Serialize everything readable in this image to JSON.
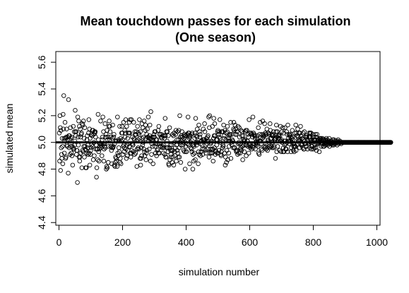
{
  "chart_data": {
    "type": "scatter",
    "title": "Mean touchdown passes for each simulation",
    "subtitle": "(One season)",
    "xlabel": "simulation number",
    "ylabel": "simulated mean",
    "xlim": [
      -10,
      1010
    ],
    "ylim": [
      4.38,
      5.68
    ],
    "x_ticks": [
      0,
      200,
      400,
      600,
      800,
      1000
    ],
    "x_tick_labels": [
      "0",
      "200",
      "400",
      "600",
      "800",
      "1000"
    ],
    "y_ticks": [
      4.4,
      4.6,
      4.8,
      5.0,
      5.2,
      5.4,
      5.6
    ],
    "y_tick_labels": [
      "4.4",
      "4.6",
      "4.8",
      "5.0",
      "5.2",
      "5.4",
      "5.6"
    ],
    "reference_line": {
      "y": 5.0,
      "color": "#000000"
    },
    "marker": {
      "shape": "open-circle",
      "color": "#000000"
    },
    "grid": false,
    "n_points": 1000,
    "x": "simulation index 1..1000",
    "values": [
      5.07,
      4.86,
      5.2,
      5.11,
      4.79,
      5.09,
      4.96,
      4.91,
      4.88,
      5.03,
      4.97,
      4.84,
      5.21,
      5.1,
      5.35,
      5.03,
      4.92,
      5.01,
      5.15,
      5.03,
      4.88,
      4.89,
      5.04,
      5.1,
      4.98,
      4.97,
      5.04,
      5.02,
      4.77,
      5.32,
      5.05,
      4.96,
      5.05,
      5.02,
      4.91,
      5.11,
      4.97,
      5.03,
      4.92,
      5.04,
      4.9,
      4.97,
      4.83,
      4.96,
      5.12,
      4.95,
      4.95,
      5.08,
      4.98,
      5.01,
      5.24,
      5.08,
      5.05,
      5.08,
      4.91,
      4.94,
      4.94,
      4.7,
      5.19,
      5.04,
      4.98,
      5.16,
      4.89,
      5.12,
      4.86,
      4.89,
      5.1,
      5.04,
      4.92,
      5.06,
      5.07,
      4.81,
      5.14,
      4.94,
      5.13,
      4.93,
      5.16,
      4.97,
      5.03,
      4.89,
      5.11,
      4.97,
      4.95,
      4.81,
      4.94,
      4.81,
      4.92,
      5.02,
      5.05,
      4.96,
      4.98,
      4.91,
      5.07,
      5.17,
      4.92,
      5.1,
      4.83,
      5.03,
      4.91,
      4.94,
      4.96,
      5.06,
      4.98,
      5.05,
      5.09,
      4.97,
      5.09,
      4.87,
      5.06,
      5.0,
      4.9,
      5.08,
      5.07,
      5.08,
      5.04,
      4.95,
      4.98,
      4.74,
      4.81,
      4.95,
      4.95,
      4.87,
      5.21,
      5.02,
      4.93,
      4.86,
      4.95,
      4.99,
      4.97,
      4.99,
      5.16,
      4.96,
      4.98,
      4.99,
      4.9,
      5.02,
      5.04,
      5.19,
      4.99,
      5.08,
      4.86,
      4.95,
      4.99,
      4.97,
      5.14,
      4.96,
      5.04,
      5.06,
      4.8,
      4.82,
      5.09,
      4.81,
      5.02,
      5.04,
      4.85,
      4.97,
      5.12,
      5.16,
      5.02,
      5.12,
      5.08,
      5.04,
      4.97,
      4.97,
      4.94,
      4.84,
      4.96,
      5.03,
      5.13,
      4.96,
      4.97,
      5.04,
      5.06,
      4.83,
      4.99,
      4.82,
      4.85,
      4.89,
      5.01,
      4.88,
      4.86,
      5.01,
      4.82,
      5.19,
      4.92,
      4.9,
      5.02,
      4.96,
      5.01,
      4.93,
      5.12,
      4.85,
      4.88,
      5.03,
      4.84,
      5.01,
      5.07,
      5.12,
      5.07,
      5.02,
      4.91,
      4.97,
      5.15,
      4.98,
      4.93,
      4.96,
      5.09,
      5.04,
      5.07,
      5.17,
      4.95,
      4.88,
      5.12,
      4.98,
      4.9,
      5.03,
      4.94,
      5.07,
      4.99,
      5.07,
      5.15,
      4.97,
      5.07,
      5.17,
      4.92,
      4.89,
      4.92,
      5.17,
      4.94,
      4.99,
      5.04,
      4.98,
      4.98,
      4.93,
      5.15,
      5.03,
      5.02,
      4.91,
      5.08,
      5.06,
      4.92,
      5.06,
      5.01,
      5.08,
      4.82,
      4.95,
      5.12,
      5.02,
      4.96,
      5.07,
      4.95,
      5.06,
      5.17,
      5.03,
      4.88,
      5.08,
      4.83,
      4.88,
      4.96,
      4.9,
      5.14,
      5.03,
      4.98,
      5.11,
      5.0,
      5.04,
      4.95,
      5.16,
      4.93,
      4.9,
      5.09,
      5.13,
      5.03,
      4.87,
      4.92,
      5.06,
      4.94,
      5.1,
      5.04,
      5.04,
      5.19,
      5.01,
      5.03,
      4.95,
      5.05,
      5.13,
      5.03,
      4.86,
      5.23,
      5.02,
      4.91,
      4.99,
      5.04,
      5.02,
      4.97,
      4.84,
      5.01,
      5.04,
      5.06,
      5.04,
      5.08,
      4.97,
      5.08,
      4.92,
      5.02,
      4.99,
      4.9,
      5.02,
      4.94,
      4.99,
      4.95,
      5.09,
      4.92,
      5.12,
      4.99,
      4.92,
      5.06,
      5.06,
      4.97,
      4.97,
      5.04,
      5.04,
      5.06,
      5.03,
      4.96,
      4.97,
      5.05,
      4.92,
      4.98,
      4.96,
      5.05,
      5.03,
      4.91,
      5.18,
      5.05,
      4.89,
      4.89,
      5.08,
      4.96,
      5.01,
      5.08,
      4.96,
      4.93,
      5.05,
      4.84,
      4.83,
      4.96,
      5.11,
      4.87,
      4.98,
      4.94,
      4.91,
      4.89,
      4.98,
      4.94,
      4.85,
      5.06,
      4.94,
      4.89,
      5.05,
      4.83,
      5.07,
      5.0,
      4.93,
      4.9,
      4.96,
      5.06,
      5.09,
      4.86,
      4.98,
      5.02,
      4.94,
      5.08,
      4.92,
      4.89,
      5.02,
      5.09,
      4.96,
      4.89,
      5.2,
      5.0,
      5.04,
      4.85,
      4.98,
      5.05,
      5.01,
      5.08,
      5.04,
      5.02,
      4.98,
      5.0,
      4.94,
      5.03,
      5.06,
      4.93,
      5.05,
      4.8,
      5.05,
      4.97,
      4.93,
      4.93,
      5.06,
      5.06,
      4.99,
      5.02,
      5.19,
      5.07,
      4.98,
      5.07,
      5.03,
      4.84,
      5.04,
      5.05,
      4.96,
      5.0,
      5.06,
      4.95,
      4.93,
      5.07,
      4.98,
      4.8,
      4.91,
      4.98,
      4.86,
      4.97,
      4.92,
      5.03,
      5.07,
      4.87,
      5.18,
      5.05,
      5.0,
      4.98,
      5.04,
      5.1,
      5.0,
      5.0,
      4.84,
      4.93,
      5.13,
      4.91,
      5.08,
      5.04,
      5.06,
      4.9,
      4.99,
      4.93,
      5.01,
      5.01,
      4.98,
      4.95,
      4.91,
      5.02,
      5.1,
      5.02,
      4.95,
      5.02,
      5.14,
      5.08,
      5.01,
      4.94,
      4.98,
      4.92,
      5.03,
      5.01,
      4.99,
      5.04,
      4.95,
      5.05,
      5.01,
      5.19,
      4.89,
      5.11,
      5.2,
      4.92,
      4.95,
      4.99,
      5.0,
      4.92,
      5.01,
      4.95,
      4.92,
      5.12,
      4.95,
      4.86,
      5.03,
      5.18,
      5.05,
      4.96,
      5.14,
      5.05,
      4.91,
      4.94,
      4.93,
      5.02,
      4.98,
      4.92,
      5.02,
      5.08,
      5.09,
      4.92,
      5.06,
      4.94,
      5.04,
      5.08,
      5.17,
      5.03,
      5.0,
      4.91,
      4.9,
      4.93,
      5.08,
      5.08,
      4.96,
      5.08,
      4.98,
      4.97,
      5.13,
      5.03,
      5.05,
      4.92,
      5.09,
      4.83,
      4.89,
      5.02,
      5.07,
      4.85,
      4.94,
      5.08,
      5.12,
      4.87,
      5.01,
      5.03,
      4.92,
      4.97,
      5.05,
      5.06,
      5.01,
      5.06,
      5.15,
      4.88,
      5.0,
      5.06,
      4.98,
      5.02,
      5.01,
      5.01,
      4.96,
      5.1,
      5.15,
      5.09,
      4.96,
      4.96,
      5.13,
      5.06,
      5.1,
      4.94,
      4.93,
      5.06,
      5.08,
      4.94,
      4.91,
      5.12,
      4.99,
      4.92,
      5.0,
      5.11,
      5.04,
      4.99,
      4.92,
      4.95,
      4.96,
      5.09,
      4.94,
      5.05,
      5.08,
      4.97,
      4.87,
      5.05,
      5.02,
      5.01,
      4.98,
      4.93,
      5.01,
      5.02,
      5.08,
      4.98,
      5.09,
      4.9,
      4.98,
      5.09,
      5.01,
      5.01,
      4.97,
      5.06,
      5.04,
      4.92,
      5.17,
      4.98,
      5.07,
      4.96,
      4.99,
      4.97,
      5.07,
      5.06,
      4.95,
      5.06,
      4.97,
      5.04,
      5.19,
      4.96,
      5.07,
      4.99,
      5.06,
      5.05,
      5.05,
      5.03,
      4.95,
      5.0,
      5.0,
      4.99,
      4.98,
      5.03,
      5.05,
      5.02,
      4.97,
      5.11,
      4.92,
      5.01,
      4.91,
      5.06,
      5.01,
      5.15,
      5.01,
      5.01,
      4.95,
      4.99,
      5.06,
      4.94,
      5.03,
      5.16,
      5.05,
      5.06,
      5.04,
      4.97,
      5.05,
      5.14,
      4.96,
      5.07,
      4.97,
      5.06,
      4.95,
      5.06,
      5.1,
      4.96,
      4.94,
      5.01,
      5.02,
      5.07,
      5.0,
      5.06,
      4.97,
      4.96,
      5.14,
      5.09,
      5.03,
      5.03,
      4.97,
      5.06,
      5.05,
      4.96,
      5.0,
      5.05,
      5.06,
      5.08,
      4.96,
      4.97,
      5.02,
      5.03,
      5.02,
      4.88,
      5.03,
      5.08,
      5.13,
      4.93,
      5.04,
      5.08,
      4.97,
      5.03,
      5.05,
      5.05,
      5.06,
      5.03,
      4.94,
      5.05,
      5.01,
      5.12,
      5.01,
      4.93,
      5.02,
      5.08,
      5.0,
      5.0,
      5.11,
      4.93,
      4.96,
      5.07,
      4.93,
      5.01,
      4.98,
      5.11,
      5.01,
      4.95,
      4.99,
      4.95,
      5.08,
      5.0,
      5.06,
      4.93,
      5.13,
      5.01,
      5.03,
      5.01,
      5.06,
      4.99,
      5.05,
      5.06,
      5.01,
      5.04,
      4.93,
      4.96,
      5.0,
      5.03,
      5.09,
      5.04,
      5.02,
      4.94,
      4.97,
      4.99,
      4.93,
      4.97,
      5.07,
      4.97,
      4.97,
      5.13,
      4.94,
      5.07,
      4.98,
      5.05,
      5.05,
      5.1,
      5.02,
      5.04,
      5.01,
      5.07,
      5.01,
      4.96,
      5.07,
      5.02,
      5.12,
      5.05,
      4.98,
      4.98,
      4.99,
      4.99,
      5.03,
      4.96,
      5.07,
      5.02,
      4.95,
      4.95,
      5.08,
      5.01,
      4.99,
      5.04,
      4.99,
      4.97,
      4.97,
      5.05,
      5.04,
      5.01,
      4.95,
      5.02,
      5.0,
      4.99,
      5.04,
      5.07,
      5.04,
      4.96,
      5.07,
      5.04,
      5.0,
      5.07,
      4.95,
      4.97,
      4.97,
      5.0,
      5.01,
      5.06,
      4.95,
      5.04,
      5.02,
      4.96,
      5.02,
      4.98,
      5.02,
      5.06,
      4.96,
      5.04,
      4.94,
      4.99,
      5.06,
      5.0,
      5.02,
      4.99,
      5.01,
      5.02,
      5.0,
      4.93,
      5.03,
      5.01,
      5.02,
      5.03,
      5.03,
      4.97,
      4.99,
      5.01,
      5.0,
      5.03,
      5.02,
      4.97,
      5.02,
      5.02,
      4.97,
      4.99,
      5.0,
      5.01,
      5.02,
      4.98,
      5.0,
      5.03,
      4.99,
      5.0,
      5.01,
      5.02,
      4.98,
      4.99,
      5.0,
      5.0,
      5.03,
      4.97,
      5.0,
      5.0,
      5.01,
      4.99,
      5.01,
      5.0,
      4.99,
      5.0,
      4.98,
      5.02,
      5.0,
      5.0,
      4.98,
      5.02,
      4.99,
      5.01,
      5.0,
      5.0,
      4.99,
      5.01,
      5.0,
      5.0,
      5.0,
      4.98,
      5.01,
      5.0,
      5.02,
      5.0,
      4.99,
      5.0,
      5.0,
      5.0,
      5.01,
      5.0,
      5.0,
      5.0,
      4.99,
      5.0,
      5.0,
      5.0,
      5.0,
      5.0,
      5.0,
      5.0,
      5.0,
      5.0,
      5.0,
      5.0,
      5.0,
      5.0,
      5.0,
      5.0,
      5.0,
      5.0,
      5.0,
      5.0,
      5.0,
      5.0,
      5.0,
      5.0,
      5.0,
      5.0,
      5.0,
      5.0,
      5.0,
      5.0,
      5.0,
      5.0,
      5.0,
      5.0,
      5.0,
      5.0,
      5.0,
      5.0,
      5.0,
      5.0,
      5.0,
      5.0,
      5.0,
      5.0,
      5.0,
      5.0,
      5.0,
      5.0,
      5.0,
      5.0,
      5.0,
      5.0,
      5.0,
      5.0,
      5.0,
      5.0,
      5.0,
      5.0,
      5.0,
      5.0,
      5.0,
      5.0,
      5.0,
      5.0,
      5.0,
      5.0,
      5.0,
      5.0,
      5.0,
      5.0,
      5.0,
      5.0,
      5.0,
      5.0,
      5.0,
      5.0,
      5.0,
      5.0,
      5.0,
      5.0,
      5.0,
      5.0,
      5.0,
      5.0,
      5.0,
      5.0,
      5.0,
      5.0,
      5.0,
      5.0,
      5.0,
      5.0,
      5.0,
      5.0,
      5.0,
      5.0,
      5.0,
      5.0,
      5.0,
      5.0,
      5.0,
      5.0,
      5.0,
      5.0,
      5.0,
      5.0,
      5.0,
      5.0,
      5.0,
      5.0,
      5.0,
      5.0,
      5.0,
      5.0,
      5.0,
      5.0,
      5.0,
      5.0,
      5.0,
      5.0,
      5.0,
      5.0,
      5.0,
      5.0,
      5.0,
      5.0,
      5.0,
      5.0,
      5.0,
      5.0,
      5.0,
      5.0,
      5.0,
      5.0,
      5.0,
      5.0,
      5.0,
      5.0,
      5.0,
      5.0,
      5.0,
      5.0,
      5.0,
      5.0,
      5.0,
      5.0,
      5.0,
      5.0,
      5.0,
      5.0,
      5.0,
      5.0,
      5.0,
      5.0,
      5.0,
      5.0,
      5.0
    ]
  }
}
